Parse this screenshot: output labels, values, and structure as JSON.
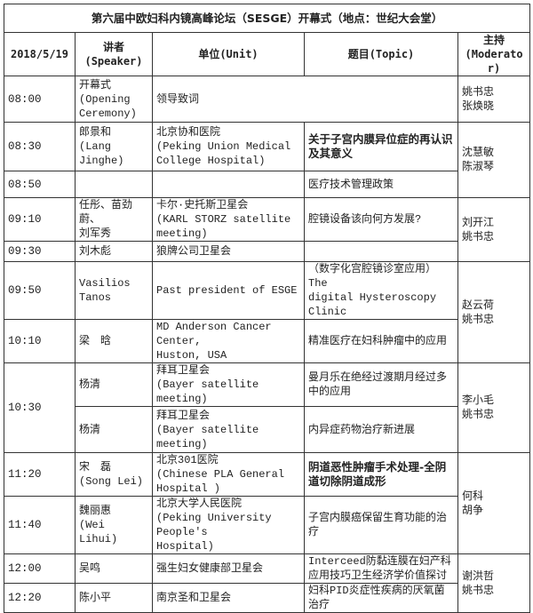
{
  "title": "第六届中欧妇科内镜高峰论坛（SESGE）开幕式（地点：世纪大会堂）",
  "header": {
    "date": "2018/5/19",
    "speaker": [
      "讲者",
      "(Speaker)"
    ],
    "unit": "单位(Unit)",
    "topic": "题目(Topic)",
    "moderator": [
      "主持",
      "(Moderator)"
    ]
  },
  "rows": [
    {
      "time": "08:00",
      "speaker": [
        "开幕式",
        "(Opening",
        "Ceremony)"
      ],
      "unit": [
        "领导致词"
      ],
      "topic": [],
      "merge_unit_topic": true,
      "moderator": [
        "姚书忠",
        "张焕晓"
      ],
      "mod_span": 1
    },
    {
      "time": "08:30",
      "speaker": [
        "郎景和",
        "(Lang Jinghe)"
      ],
      "unit": [
        "北京协和医院",
        "(Peking Union Medical",
        "College Hospital)"
      ],
      "topic": [
        "关于子宫内膜异位症的再认识",
        "及其意义"
      ],
      "topic_bold": true,
      "moderator": [
        "沈慧敏",
        "陈淑琴"
      ],
      "mod_span": 2
    },
    {
      "time": "08:50",
      "speaker": [],
      "unit": [],
      "topic": [
        "医疗技术管理政策"
      ]
    },
    {
      "time": "09:10",
      "speaker": [
        "任彤、苗劲蔚、",
        "刘军秀"
      ],
      "unit": [
        "卡尔·史托斯卫星会",
        "(KARL STORZ satellite",
        "meeting)"
      ],
      "topic": [
        "腔镜设备该向何方发展?"
      ],
      "moderator": [
        "刘开江",
        "姚书忠"
      ],
      "mod_span": 2
    },
    {
      "time": "09:30",
      "speaker": [
        "刘木彪"
      ],
      "unit": [
        "狼牌公司卫星会"
      ],
      "topic": []
    },
    {
      "time": "09:50",
      "speaker": [
        "Vasilios",
        "Tanos"
      ],
      "unit": [
        "Past president of ESGE"
      ],
      "topic": [
        "（数字化宫腔镜诊室应用）The",
        "digital Hysteroscopy Clinic"
      ],
      "moderator": [
        "赵云荷",
        "姚书忠"
      ],
      "mod_span": 2
    },
    {
      "time": "10:10",
      "speaker": [
        "梁　晗"
      ],
      "unit": [
        "MD Anderson Cancer Center,",
        "Huston, USA"
      ],
      "topic": [
        "精准医疗在妇科肿瘤中的应用"
      ]
    },
    {
      "time": "10:30",
      "time_span": 2,
      "speaker": [
        "杨清"
      ],
      "unit": [
        "拜耳卫星会",
        "(Bayer satellite meeting)"
      ],
      "topic": [
        "曼月乐在绝经过渡期月经过多",
        "中的应用"
      ],
      "moderator": [
        "李小毛",
        "姚书忠"
      ],
      "mod_span": 2
    },
    {
      "time": null,
      "speaker": [
        "杨清"
      ],
      "unit": [
        "拜耳卫星会",
        "(Bayer satellite meeting)"
      ],
      "topic": [
        "内异症药物治疗新进展"
      ]
    },
    {
      "time": "11:20",
      "speaker": [
        "宋　磊",
        "(Song Lei)"
      ],
      "unit": [
        "北京301医院",
        "(Chinese PLA General",
        "Hospital )"
      ],
      "topic": [
        "阴道恶性肿瘤手术处理-全阴",
        "道切除阴道成形"
      ],
      "topic_bold": true,
      "moderator": [
        "何科",
        "胡争"
      ],
      "mod_span": 2
    },
    {
      "time": "11:40",
      "speaker": [
        "魏丽惠",
        "(Wei Lihui)"
      ],
      "unit": [
        "北京大学人民医院",
        "(Peking University People's",
        "Hospital)"
      ],
      "topic": [
        "子宫内膜癌保留生育功能的治",
        "疗"
      ]
    },
    {
      "time": "12:00",
      "speaker": [
        "吴鸣"
      ],
      "unit": [
        "强生妇女健康部卫星会"
      ],
      "topic": [
        "Interceed防黏连膜在妇产科",
        "应用技巧卫生经济学价值探讨"
      ],
      "moderator": [
        "谢洪哲",
        "姚书忠"
      ],
      "mod_span": 2
    },
    {
      "time": "12:20",
      "speaker": [
        "陈小平"
      ],
      "unit": [
        "南京圣和卫星会"
      ],
      "topic": [
        "妇科PID炎症性疾病的厌氧菌",
        "治疗"
      ]
    }
  ]
}
